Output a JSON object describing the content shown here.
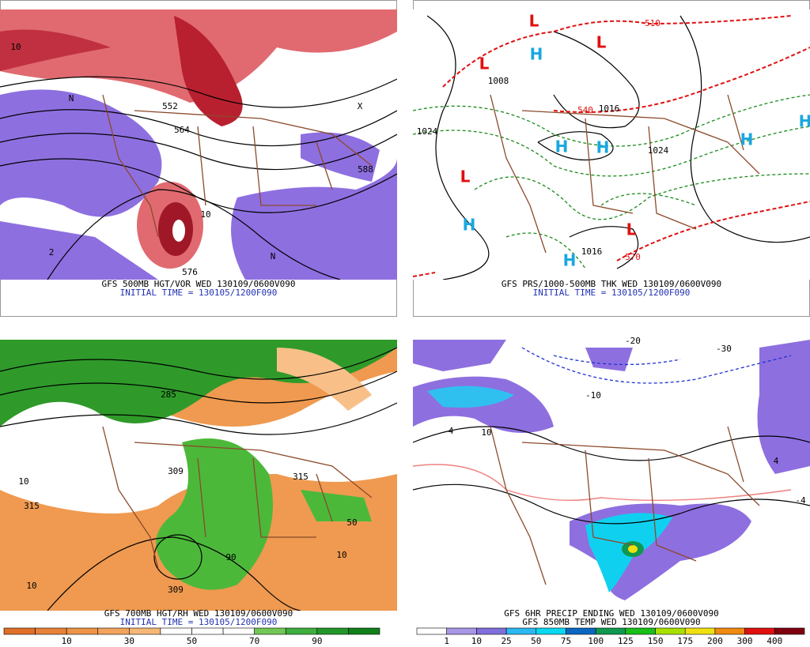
{
  "panels": [
    {
      "caption": "GFS 500MB HGT/VOR WED 130109/0600V090",
      "initial": "INITIAL TIME = 130105/1200F090",
      "labels": [
        "10",
        "588",
        "576",
        "552",
        "564",
        "N",
        "N",
        "X",
        "2",
        "10"
      ]
    },
    {
      "caption": "GFS PRS/1000-500MB THK WED 130109/0600V090",
      "initial": "INITIAL TIME = 130105/1200F090",
      "labels": [
        "L",
        "L",
        "L",
        "L",
        "L",
        "H",
        "H",
        "H",
        "H",
        "H",
        "H",
        "H",
        "1024",
        "1024",
        "1016",
        "1016",
        "1008",
        "570",
        "540",
        "510"
      ]
    },
    {
      "caption": "GFS 700MB HGT/RH WED 130109/0600V090",
      "initial": "INITIAL TIME = 130105/1200F090",
      "labels": [
        "315",
        "309",
        "309",
        "285",
        "10",
        "10",
        "50",
        "90",
        "10",
        "315"
      ]
    },
    {
      "caption": "GFS 6HR PRECIP ENDING WED 130109/0600V090",
      "initial": "GFS 850MB TEMP WED 130109/0600V090",
      "labels": [
        "-10",
        "4",
        "-4",
        "10",
        "4",
        "-20",
        "-30"
      ]
    }
  ],
  "colorbars": [
    {
      "labels": [
        "10",
        "30",
        "50",
        "70",
        "90"
      ],
      "colors": [
        "#e07028",
        "#e88238",
        "#ee9448",
        "#f2a45c",
        "#f6b878",
        "#ffffff",
        "#ffffff",
        "#ffffff",
        "#72c854",
        "#3eae3e",
        "#22962a",
        "#10801a"
      ]
    },
    {
      "labels": [
        "1",
        "10",
        "25",
        "50",
        "75",
        "100",
        "125",
        "150",
        "175",
        "200",
        "300",
        "400"
      ],
      "colors": [
        "#ffffff",
        "#a896e6",
        "#8070dc",
        "#2cb8f0",
        "#08d8f0",
        "#0a68c0",
        "#109850",
        "#18c018",
        "#a8e000",
        "#f0e010",
        "#f08a10",
        "#e01010",
        "#800010"
      ]
    }
  ]
}
